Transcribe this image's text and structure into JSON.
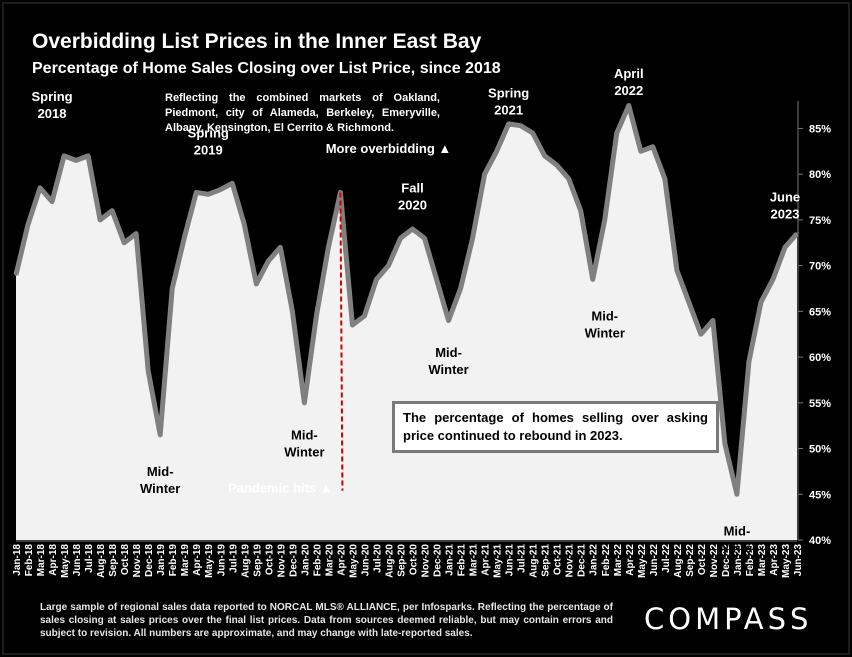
{
  "chart_data": {
    "type": "area",
    "title": "Overbidding List Prices in the Inner East Bay",
    "subtitle": "Percentage of Home Sales Closing over List Price, since 2018",
    "note": "Reflecting the combined markets of Oakland, Piedmont, city of Alameda, Berkeley, Emeryville, Albany, Kensington, El Cerrito & Richmond.",
    "callout": "The percentage of homes selling over asking price continued to rebound in 2023.",
    "ylim": [
      40,
      88
    ],
    "y_ticks": [
      "40%",
      "45%",
      "50%",
      "55%",
      "60%",
      "65%",
      "70%",
      "75%",
      "80%",
      "85%"
    ],
    "x": [
      "Jan-18",
      "Feb-18",
      "Mar-18",
      "Apr-18",
      "May-18",
      "Jun-18",
      "Jul-18",
      "Aug-18",
      "Sep-18",
      "Oct-18",
      "Nov-18",
      "Dec-18",
      "Jan-19",
      "Feb-19",
      "Mar-19",
      "Apr-19",
      "May-19",
      "Jun-19",
      "Jul-19",
      "Aug-19",
      "Sep-19",
      "Oct-19",
      "Nov-19",
      "Dec-19",
      "Jan-20",
      "Feb-20",
      "Mar-20",
      "Apr-20",
      "May-20",
      "Jun-20",
      "Jul-20",
      "Aug-20",
      "Sep-20",
      "Oct-20",
      "Nov-20",
      "Dec-20",
      "Jan-21",
      "Feb-21",
      "Mar-21",
      "Apr-21",
      "May-21",
      "Jun-21",
      "Jul-21",
      "Aug-21",
      "Sep-21",
      "Oct-21",
      "Nov-21",
      "Dec-21",
      "Jan-22",
      "Feb-22",
      "Mar-22",
      "Apr-22",
      "May-22",
      "Jun-22",
      "Jul-22",
      "Aug-22",
      "Sep-22",
      "Oct-22",
      "Nov-22",
      "Dec-22",
      "Jan-23",
      "Feb-23",
      "Mar-23",
      "Apr-23",
      "May-23",
      "Jun-23"
    ],
    "series": [
      {
        "values": [
          69,
          74.5,
          78.5,
          77,
          82,
          81.5,
          82,
          75,
          76,
          72.5,
          73.5,
          58.5,
          51.5,
          67.5,
          73,
          78,
          77.8,
          78.3,
          79,
          74.5,
          68,
          70.5,
          72,
          65,
          55,
          64.5,
          72,
          78,
          63.5,
          64.5,
          68.5,
          70,
          73,
          74,
          73,
          68.5,
          64,
          67.5,
          73,
          80,
          82.5,
          85.5,
          85.3,
          84.5,
          82,
          81,
          79.5,
          76,
          68.5,
          75,
          84.5,
          87.5,
          82.5,
          83,
          79.5,
          69.5,
          66,
          62.5,
          64,
          50.5,
          45,
          59.5,
          66,
          68.5,
          72,
          73.5
        ]
      }
    ],
    "annotations": [
      {
        "label": "Spring\n2018",
        "month": "Apr-18",
        "value": 88
      },
      {
        "label": "Spring\n2019",
        "month": "May-19",
        "value": 84
      },
      {
        "label": "Mid-\nWinter",
        "month": "Jan-19",
        "value": 47
      },
      {
        "label": "Mid-\nWinter",
        "month": "Jan-20",
        "value": 51
      },
      {
        "label": "Fall\n2020",
        "month": "Oct-20",
        "value": 78
      },
      {
        "label": "Mid-\nWinter",
        "month": "Jan-21",
        "value": 60
      },
      {
        "label": "Spring\n2021",
        "month": "Jun-21",
        "value": 88.4
      },
      {
        "label": "April\n2022",
        "month": "Apr-22",
        "value": 90.5
      },
      {
        "label": "Mid-\nWinter",
        "month": "Feb-22",
        "value": 64
      },
      {
        "label": "Mid-\nWinter",
        "month": "Jan-23",
        "value": 40.5
      },
      {
        "label": "June\n2023",
        "month": "May-23",
        "value": 77
      },
      {
        "label": "More overbidding ▲",
        "month": "Aug-20",
        "value": 82.3
      },
      {
        "label": "Pandemic hits ▲",
        "month": "Nov-19",
        "value": 45.2
      }
    ],
    "pandemic_marker": "Apr-20",
    "colors": {
      "background": "#000000",
      "area_fill": "#f2f2f2",
      "line": "#808080",
      "pandemic_line": "#cc0000"
    }
  },
  "footer": "Large sample of regional sales data reported to NORCAL MLS® ALLIANCE, per Infosparks. Reflecting the percentage of sales closing at sales prices over the final list prices. Data from sources deemed reliable, but may contain errors and subject to revision. All numbers are approximate, and may change with late-reported sales.",
  "logo": "COMPASS"
}
